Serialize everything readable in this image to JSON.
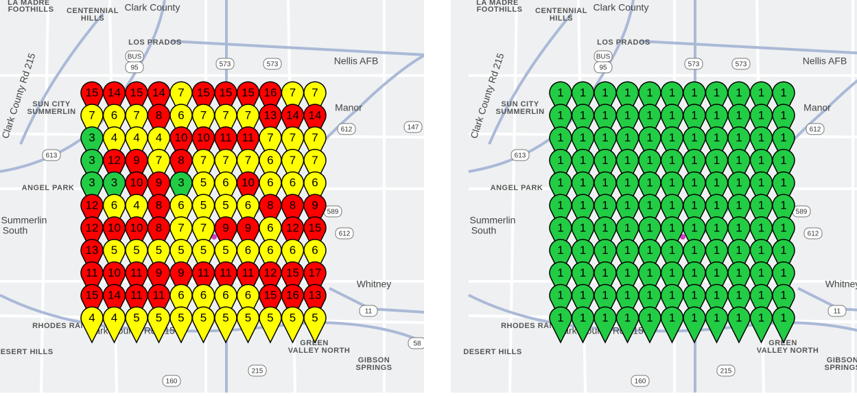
{
  "map_labels": [
    "LA MADRE",
    "FOOTHILLS",
    "CENTENNIAL",
    "HILLS",
    "Clark County",
    "LOS PRADOS",
    "Nellis AFB",
    "SUN CITY",
    "SUMMERLIN",
    "Manor",
    "ANGEL PARK",
    "Summerlin",
    "South",
    "Whitney",
    "RHODES RANCH",
    "DESERT HILLS",
    "GREEN",
    "VALLEY NORTH",
    "GIBSON",
    "SPRINGS",
    "Clark County Rd 215",
    "Clark County Rd 215"
  ],
  "shields": [
    "BUS",
    "95",
    "573",
    "573",
    "612",
    "147",
    "613",
    "589",
    "612",
    "11",
    "215",
    "160",
    "58"
  ],
  "panels": [
    {
      "markers": {
        "values": [
          [
            15,
            14,
            15,
            14,
            7,
            15,
            15,
            15,
            16,
            7,
            7
          ],
          [
            7,
            6,
            7,
            8,
            6,
            7,
            7,
            7,
            13,
            14,
            14
          ],
          [
            3,
            4,
            4,
            4,
            10,
            10,
            11,
            11,
            7,
            7,
            7
          ],
          [
            3,
            12,
            9,
            7,
            8,
            7,
            7,
            7,
            6,
            7,
            7
          ],
          [
            3,
            3,
            10,
            9,
            3,
            5,
            6,
            10,
            6,
            6,
            6
          ],
          [
            12,
            6,
            4,
            8,
            6,
            5,
            5,
            6,
            8,
            8,
            9
          ],
          [
            12,
            10,
            10,
            8,
            7,
            7,
            9,
            9,
            6,
            12,
            15
          ],
          [
            13,
            5,
            5,
            5,
            5,
            5,
            5,
            6,
            6,
            6,
            6
          ],
          [
            11,
            10,
            11,
            9,
            9,
            11,
            11,
            11,
            12,
            15,
            17
          ],
          [
            15,
            14,
            11,
            11,
            6,
            6,
            6,
            6,
            15,
            16,
            13
          ],
          [
            4,
            4,
            5,
            5,
            5,
            5,
            5,
            5,
            5,
            5,
            5
          ]
        ],
        "colors": [
          [
            "#ff0000",
            "#ff0000",
            "#ff0000",
            "#ff0000",
            "#ffff00",
            "#ff0000",
            "#ff0000",
            "#ff0000",
            "#ff0000",
            "#ffff00",
            "#ffff00"
          ],
          [
            "#ffff00",
            "#ffff00",
            "#ffff00",
            "#ff0000",
            "#ffff00",
            "#ffff00",
            "#ffff00",
            "#ffff00",
            "#ff0000",
            "#ff0000",
            "#ff0000"
          ],
          [
            "#22cc44",
            "#ffff00",
            "#ffff00",
            "#ffff00",
            "#ff0000",
            "#ff0000",
            "#ff0000",
            "#ff0000",
            "#ffff00",
            "#ffff00",
            "#ffff00"
          ],
          [
            "#22cc44",
            "#ff0000",
            "#ff0000",
            "#ffff00",
            "#ff0000",
            "#ffff00",
            "#ffff00",
            "#ffff00",
            "#ffff00",
            "#ffff00",
            "#ffff00"
          ],
          [
            "#22cc44",
            "#22cc44",
            "#ff0000",
            "#ff0000",
            "#22cc44",
            "#ffff00",
            "#ffff00",
            "#ff0000",
            "#ffff00",
            "#ffff00",
            "#ffff00"
          ],
          [
            "#ff0000",
            "#ffff00",
            "#ffff00",
            "#ff0000",
            "#ffff00",
            "#ffff00",
            "#ffff00",
            "#ffff00",
            "#ff0000",
            "#ff0000",
            "#ff0000"
          ],
          [
            "#ff0000",
            "#ff0000",
            "#ff0000",
            "#ff0000",
            "#ffff00",
            "#ffff00",
            "#ff0000",
            "#ff0000",
            "#ffff00",
            "#ff0000",
            "#ff0000"
          ],
          [
            "#ff0000",
            "#ffff00",
            "#ffff00",
            "#ffff00",
            "#ffff00",
            "#ffff00",
            "#ffff00",
            "#ffff00",
            "#ffff00",
            "#ffff00",
            "#ffff00"
          ],
          [
            "#ff0000",
            "#ff0000",
            "#ff0000",
            "#ff0000",
            "#ff0000",
            "#ff0000",
            "#ff0000",
            "#ff0000",
            "#ff0000",
            "#ff0000",
            "#ff0000"
          ],
          [
            "#ff0000",
            "#ff0000",
            "#ff0000",
            "#ff0000",
            "#ffff00",
            "#ffff00",
            "#ffff00",
            "#ffff00",
            "#ff0000",
            "#ff0000",
            "#ff0000"
          ],
          [
            "#ffff00",
            "#ffff00",
            "#ffff00",
            "#ffff00",
            "#ffff00",
            "#ffff00",
            "#ffff00",
            "#ffff00",
            "#ffff00",
            "#ffff00",
            "#ffff00"
          ]
        ]
      }
    },
    {
      "markers": {
        "values": [
          [
            1,
            1,
            1,
            1,
            1,
            1,
            1,
            1,
            1,
            1,
            1
          ],
          [
            1,
            1,
            1,
            1,
            1,
            1,
            1,
            1,
            1,
            1,
            1
          ],
          [
            1,
            1,
            1,
            1,
            1,
            1,
            1,
            1,
            1,
            1,
            1
          ],
          [
            1,
            1,
            1,
            1,
            1,
            1,
            1,
            1,
            1,
            1,
            1
          ],
          [
            1,
            1,
            1,
            1,
            1,
            1,
            1,
            1,
            1,
            1,
            1
          ],
          [
            1,
            1,
            1,
            1,
            1,
            1,
            1,
            1,
            1,
            1,
            1
          ],
          [
            1,
            1,
            1,
            1,
            1,
            1,
            1,
            1,
            1,
            1,
            1
          ],
          [
            1,
            1,
            1,
            1,
            1,
            1,
            1,
            1,
            1,
            1,
            1
          ],
          [
            1,
            1,
            1,
            1,
            1,
            1,
            1,
            1,
            1,
            1,
            1
          ],
          [
            1,
            1,
            1,
            1,
            1,
            1,
            1,
            1,
            1,
            1,
            1
          ],
          [
            1,
            1,
            1,
            1,
            1,
            1,
            1,
            1,
            1,
            1,
            1
          ]
        ],
        "colors": [
          [
            "#22cc44",
            "#22cc44",
            "#22cc44",
            "#22cc44",
            "#22cc44",
            "#22cc44",
            "#22cc44",
            "#22cc44",
            "#22cc44",
            "#22cc44",
            "#22cc44"
          ],
          [
            "#22cc44",
            "#22cc44",
            "#22cc44",
            "#22cc44",
            "#22cc44",
            "#22cc44",
            "#22cc44",
            "#22cc44",
            "#22cc44",
            "#22cc44",
            "#22cc44"
          ],
          [
            "#22cc44",
            "#22cc44",
            "#22cc44",
            "#22cc44",
            "#22cc44",
            "#22cc44",
            "#22cc44",
            "#22cc44",
            "#22cc44",
            "#22cc44",
            "#22cc44"
          ],
          [
            "#22cc44",
            "#22cc44",
            "#22cc44",
            "#22cc44",
            "#22cc44",
            "#22cc44",
            "#22cc44",
            "#22cc44",
            "#22cc44",
            "#22cc44",
            "#22cc44"
          ],
          [
            "#22cc44",
            "#22cc44",
            "#22cc44",
            "#22cc44",
            "#22cc44",
            "#22cc44",
            "#22cc44",
            "#22cc44",
            "#22cc44",
            "#22cc44",
            "#22cc44"
          ],
          [
            "#22cc44",
            "#22cc44",
            "#22cc44",
            "#22cc44",
            "#22cc44",
            "#22cc44",
            "#22cc44",
            "#22cc44",
            "#22cc44",
            "#22cc44",
            "#22cc44"
          ],
          [
            "#22cc44",
            "#22cc44",
            "#22cc44",
            "#22cc44",
            "#22cc44",
            "#22cc44",
            "#22cc44",
            "#22cc44",
            "#22cc44",
            "#22cc44",
            "#22cc44"
          ],
          [
            "#22cc44",
            "#22cc44",
            "#22cc44",
            "#22cc44",
            "#22cc44",
            "#22cc44",
            "#22cc44",
            "#22cc44",
            "#22cc44",
            "#22cc44",
            "#22cc44"
          ],
          [
            "#22cc44",
            "#22cc44",
            "#22cc44",
            "#22cc44",
            "#22cc44",
            "#22cc44",
            "#22cc44",
            "#22cc44",
            "#22cc44",
            "#22cc44",
            "#22cc44"
          ],
          [
            "#22cc44",
            "#22cc44",
            "#22cc44",
            "#22cc44",
            "#22cc44",
            "#22cc44",
            "#22cc44",
            "#22cc44",
            "#22cc44",
            "#22cc44",
            "#22cc44"
          ],
          [
            "#22cc44",
            "#22cc44",
            "#22cc44",
            "#22cc44",
            "#22cc44",
            "#22cc44",
            "#22cc44",
            "#22cc44",
            "#22cc44",
            "#22cc44",
            "#22cc44"
          ]
        ]
      }
    }
  ]
}
